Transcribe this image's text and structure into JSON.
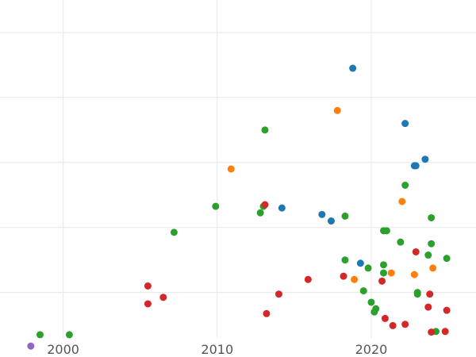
{
  "chart_data": {
    "type": "scatter",
    "title": "",
    "xlabel": "",
    "ylabel": "",
    "grid": true,
    "xlim": [
      1995.9,
      2026.8
    ],
    "ylim": [
      0.6,
      11.0
    ],
    "x_ticks": [
      2000,
      2010,
      2020
    ],
    "x_tick_labels": [
      "2000",
      "2010",
      "2020"
    ],
    "y_gridlines": [
      2,
      4,
      6,
      8,
      10
    ],
    "colors": {
      "blue": "#1f77b4",
      "orange": "#ff7f0e",
      "green": "#2ca02c",
      "red": "#d62728",
      "purple": "#9467bd"
    },
    "series": [
      {
        "name": "blue",
        "color": "#1f77b4",
        "points": [
          {
            "x": 2018.8,
            "y": 8.9
          },
          {
            "x": 2022.2,
            "y": 7.2
          },
          {
            "x": 2022.8,
            "y": 5.9
          },
          {
            "x": 2022.9,
            "y": 5.9
          },
          {
            "x": 2023.5,
            "y": 6.1
          },
          {
            "x": 2014.2,
            "y": 4.6
          },
          {
            "x": 2016.8,
            "y": 4.4
          },
          {
            "x": 2017.4,
            "y": 4.2
          },
          {
            "x": 2019.3,
            "y": 2.9
          }
        ]
      },
      {
        "name": "orange",
        "color": "#ff7f0e",
        "points": [
          {
            "x": 2017.8,
            "y": 7.6
          },
          {
            "x": 2010.9,
            "y": 5.8
          },
          {
            "x": 2022.0,
            "y": 4.8
          },
          {
            "x": 2018.9,
            "y": 2.4
          },
          {
            "x": 2021.3,
            "y": 2.6
          },
          {
            "x": 2022.8,
            "y": 2.55
          },
          {
            "x": 2024.0,
            "y": 2.75
          }
        ]
      },
      {
        "name": "green",
        "color": "#2ca02c",
        "points": [
          {
            "x": 2013.1,
            "y": 7.0
          },
          {
            "x": 2009.9,
            "y": 4.65
          },
          {
            "x": 2013.0,
            "y": 4.65
          },
          {
            "x": 2012.8,
            "y": 4.45
          },
          {
            "x": 2007.2,
            "y": 3.85
          },
          {
            "x": 2018.3,
            "y": 4.35
          },
          {
            "x": 2022.2,
            "y": 5.3
          },
          {
            "x": 2023.9,
            "y": 4.3
          },
          {
            "x": 2020.8,
            "y": 3.9
          },
          {
            "x": 2021.0,
            "y": 3.9
          },
          {
            "x": 2021.9,
            "y": 3.55
          },
          {
            "x": 2023.9,
            "y": 3.5
          },
          {
            "x": 2023.7,
            "y": 3.15
          },
          {
            "x": 2024.9,
            "y": 3.05
          },
          {
            "x": 2018.3,
            "y": 3.0
          },
          {
            "x": 2019.8,
            "y": 2.75
          },
          {
            "x": 2020.8,
            "y": 2.85
          },
          {
            "x": 2020.8,
            "y": 2.6
          },
          {
            "x": 2019.5,
            "y": 2.05
          },
          {
            "x": 2020.0,
            "y": 1.7
          },
          {
            "x": 2020.3,
            "y": 1.5
          },
          {
            "x": 2020.2,
            "y": 1.4
          },
          {
            "x": 2023.0,
            "y": 2.0
          },
          {
            "x": 2023.0,
            "y": 1.95
          },
          {
            "x": 2024.2,
            "y": 0.8
          },
          {
            "x": 1998.5,
            "y": 0.7
          },
          {
            "x": 2000.4,
            "y": 0.7
          }
        ]
      },
      {
        "name": "red",
        "color": "#d62728",
        "points": [
          {
            "x": 2013.1,
            "y": 4.7
          },
          {
            "x": 2022.9,
            "y": 3.25
          },
          {
            "x": 2018.2,
            "y": 2.5
          },
          {
            "x": 2015.9,
            "y": 2.4
          },
          {
            "x": 2020.7,
            "y": 2.35
          },
          {
            "x": 2005.5,
            "y": 2.2
          },
          {
            "x": 2014.0,
            "y": 1.95
          },
          {
            "x": 2006.5,
            "y": 1.85
          },
          {
            "x": 2005.5,
            "y": 1.65
          },
          {
            "x": 2023.8,
            "y": 1.95
          },
          {
            "x": 2023.7,
            "y": 1.55
          },
          {
            "x": 2024.9,
            "y": 1.45
          },
          {
            "x": 2013.2,
            "y": 1.35
          },
          {
            "x": 2020.9,
            "y": 1.2
          },
          {
            "x": 2021.4,
            "y": 0.98
          },
          {
            "x": 2022.2,
            "y": 1.02
          },
          {
            "x": 2023.9,
            "y": 0.78
          },
          {
            "x": 2024.8,
            "y": 0.8
          }
        ]
      },
      {
        "name": "purple",
        "color": "#9467bd",
        "points": [
          {
            "x": 1997.9,
            "y": 0.35
          }
        ]
      }
    ]
  }
}
